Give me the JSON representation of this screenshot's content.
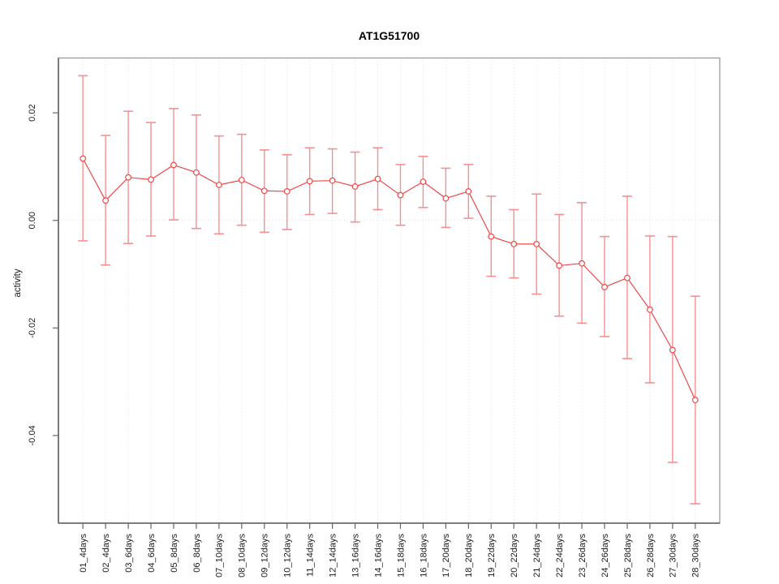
{
  "chart_data": {
    "type": "line",
    "title": "AT1G51700",
    "xlabel": "",
    "ylabel": "activity",
    "marker": "open-circle",
    "legend": "none",
    "grid": "dotted vertical line at each category; dotted horizontal line at y=0",
    "categories": [
      "01_4days",
      "02_4days",
      "03_6days",
      "04_6days",
      "05_8days",
      "06_8days",
      "07_10days",
      "08_10days",
      "09_12days",
      "10_12days",
      "11_14days",
      "12_14days",
      "13_16days",
      "14_16days",
      "15_18days",
      "16_18days",
      "17_20days",
      "18_20days",
      "19_22days",
      "20_22days",
      "21_24days",
      "22_24days",
      "23_26days",
      "24_26days",
      "25_28days",
      "26_28days",
      "27_30days",
      "28_30days"
    ],
    "series": [
      {
        "name": "activity",
        "values": [
          0.0115,
          0.0037,
          0.008,
          0.0076,
          0.0103,
          0.0089,
          0.0066,
          0.0075,
          0.0055,
          0.0054,
          0.0073,
          0.0074,
          0.0063,
          0.0077,
          0.0047,
          0.0072,
          0.0041,
          0.0054,
          -0.003,
          -0.0044,
          -0.0044,
          -0.0084,
          -0.008,
          -0.0124,
          -0.0107,
          -0.0166,
          -0.0241,
          -0.0334
        ],
        "error_low": [
          -0.0038,
          -0.0083,
          -0.0043,
          -0.0029,
          0.0001,
          -0.0015,
          -0.0025,
          -0.0009,
          -0.0022,
          -0.0017,
          0.0011,
          0.0013,
          -0.0003,
          0.002,
          -0.0009,
          0.0024,
          -0.0013,
          0.0004,
          -0.0104,
          -0.0107,
          -0.0137,
          -0.0178,
          -0.0191,
          -0.0216,
          -0.0257,
          -0.0302,
          -0.045,
          -0.0527
        ],
        "error_high": [
          0.0269,
          0.0158,
          0.0203,
          0.0182,
          0.0208,
          0.0196,
          0.0157,
          0.016,
          0.0131,
          0.0122,
          0.0135,
          0.0133,
          0.0127,
          0.0135,
          0.0104,
          0.0119,
          0.0097,
          0.0104,
          0.0045,
          0.002,
          0.0049,
          0.0011,
          0.0033,
          -0.003,
          0.0045,
          -0.0029,
          -0.003,
          -0.0141
        ]
      }
    ],
    "yticks": [
      0.02,
      0.0,
      -0.02,
      -0.04
    ],
    "ytick_labels": [
      "0.02",
      "0.00",
      "-0.02",
      "-0.04"
    ],
    "ylim": [
      -0.0563,
      0.0302
    ],
    "colors": {
      "line": "#ee4848",
      "marker": "#ee4848",
      "errorbar": "#f59090",
      "grid": "#dedede",
      "box": "#9a9a9a",
      "axis": "#444444",
      "tick": "#666666",
      "text": "#1a1a1a"
    }
  }
}
